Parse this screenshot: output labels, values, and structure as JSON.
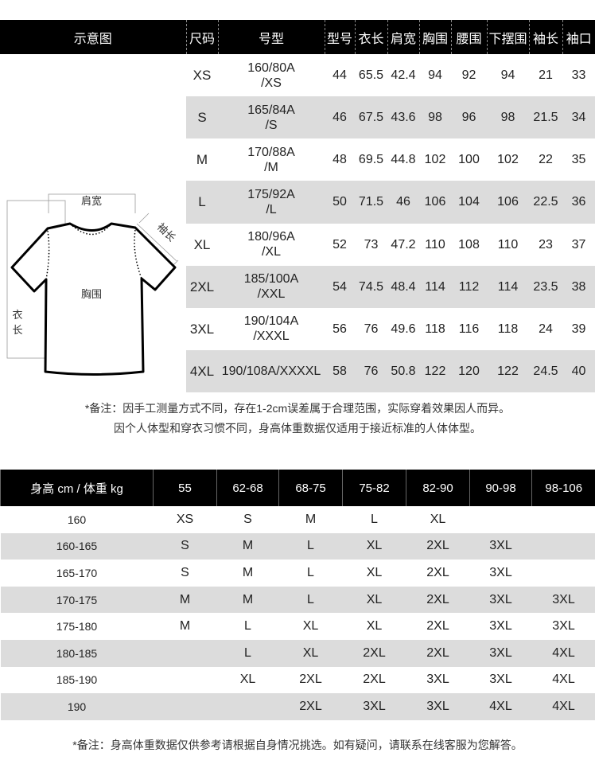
{
  "size_table": {
    "headers": [
      "示意图",
      "尺码",
      "号型",
      "型号",
      "衣长",
      "肩宽",
      "胸围",
      "腰围",
      "下摆围",
      "袖长",
      "袖口"
    ],
    "diagram_labels": {
      "shoulder": "肩宽",
      "sleeve": "袖长",
      "chest": "胸围",
      "length_1": "衣",
      "length_2": "长"
    },
    "rows": [
      [
        "XS",
        "160/80A\n/XS",
        "44",
        "65.5",
        "42.4",
        "94",
        "92",
        "94",
        "21",
        "33"
      ],
      [
        "S",
        "165/84A\n/S",
        "46",
        "67.5",
        "43.6",
        "98",
        "96",
        "98",
        "21.5",
        "34"
      ],
      [
        "M",
        "170/88A\n/M",
        "48",
        "69.5",
        "44.8",
        "102",
        "100",
        "102",
        "22",
        "35"
      ],
      [
        "L",
        "175/92A\n/L",
        "50",
        "71.5",
        "46",
        "106",
        "104",
        "106",
        "22.5",
        "36"
      ],
      [
        "XL",
        "180/96A\n/XL",
        "52",
        "73",
        "47.2",
        "110",
        "108",
        "110",
        "23",
        "37"
      ],
      [
        "2XL",
        "185/100A\n/XXL",
        "54",
        "74.5",
        "48.4",
        "114",
        "112",
        "114",
        "23.5",
        "38"
      ],
      [
        "3XL",
        "190/104A\n/XXXL",
        "56",
        "76",
        "49.6",
        "118",
        "116",
        "118",
        "24",
        "39"
      ],
      [
        "4XL",
        "190/108A/XXXXL",
        "58",
        "76",
        "50.8",
        "122",
        "120",
        "122",
        "24.5",
        "40"
      ]
    ]
  },
  "note1": {
    "line1": "*备注：因手工测量方式不同，存在1-2cm误差属于合理范围，实际穿着效果因人而异。",
    "line2": "因个人体型和穿衣习惯不同，身高体重数据仅适用于接近标准的人体体型。"
  },
  "fit_table": {
    "headers": [
      "身高 cm / 体重 kg",
      "55",
      "62-68",
      "68-75",
      "75-82",
      "82-90",
      "90-98",
      "98-106"
    ],
    "rows": [
      [
        "160",
        "XS",
        "S",
        "M",
        "L",
        "XL",
        "",
        ""
      ],
      [
        "160-165",
        "S",
        "M",
        "L",
        "XL",
        "2XL",
        "3XL",
        ""
      ],
      [
        "165-170",
        "S",
        "M",
        "L",
        "XL",
        "2XL",
        "3XL",
        ""
      ],
      [
        "170-175",
        "M",
        "M",
        "L",
        "XL",
        "2XL",
        "3XL",
        "3XL"
      ],
      [
        "175-180",
        "M",
        "L",
        "XL",
        "XL",
        "2XL",
        "3XL",
        "3XL"
      ],
      [
        "180-185",
        "",
        "L",
        "XL",
        "2XL",
        "2XL",
        "3XL",
        "4XL"
      ],
      [
        "185-190",
        "",
        "XL",
        "2XL",
        "2XL",
        "3XL",
        "3XL",
        "4XL"
      ],
      [
        "190",
        "",
        "",
        "2XL",
        "3XL",
        "3XL",
        "4XL",
        "4XL"
      ]
    ]
  },
  "note2": "*备注：身高体重数据仅供参考请根据自身情况挑选。如有疑问，请联系在线客服为您解答。"
}
